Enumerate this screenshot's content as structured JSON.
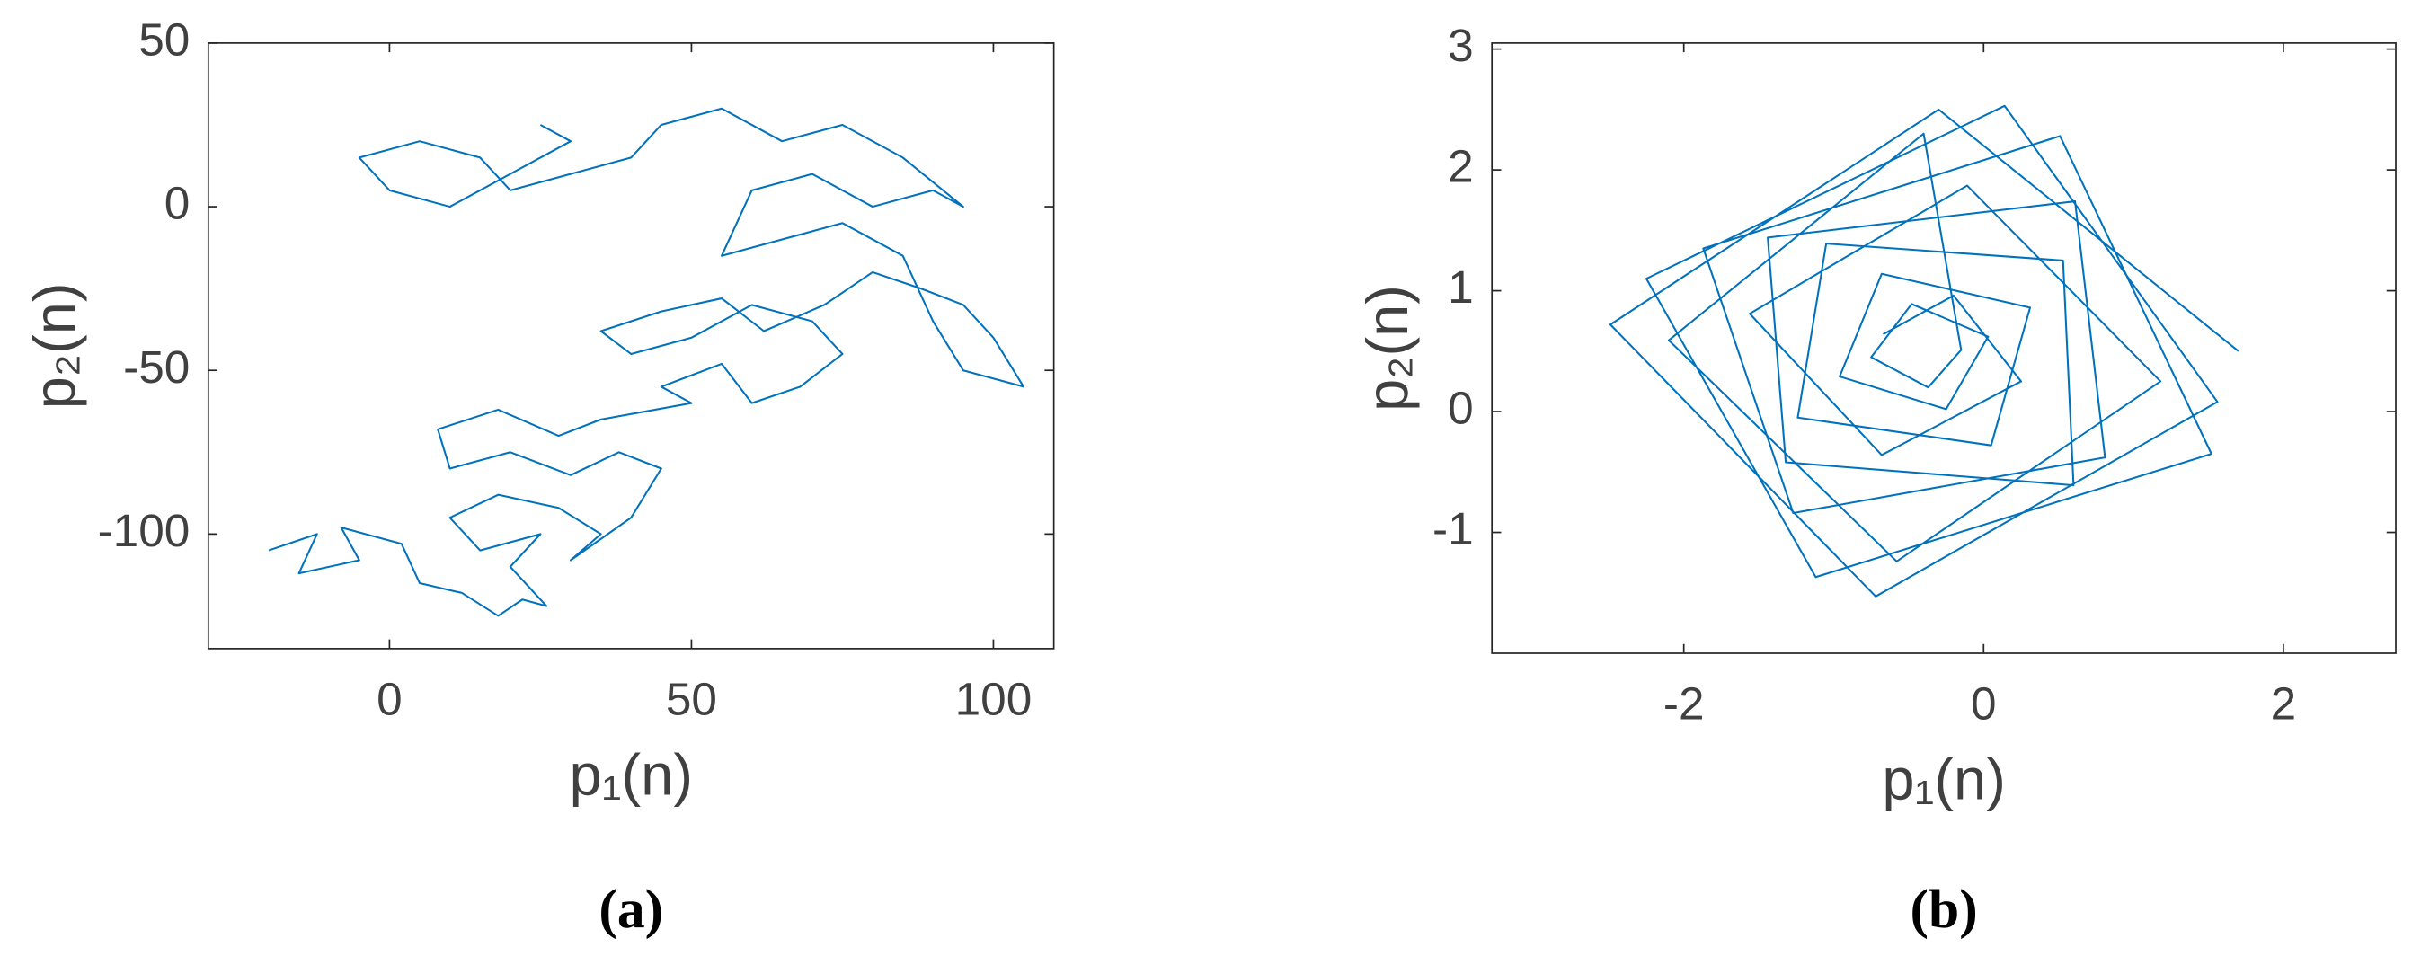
{
  "chart_data": [
    {
      "type": "line",
      "caption": "(a)",
      "xlabel": "p₁(n)",
      "ylabel": "p₂(n)",
      "xlim": [
        -30,
        110
      ],
      "ylim": [
        -135,
        50
      ],
      "xticks": [
        0,
        50,
        100
      ],
      "yticks": [
        -100,
        -50,
        0,
        50
      ],
      "x": [
        -20,
        -12,
        -15,
        -5,
        -8,
        2,
        5,
        12,
        18,
        22,
        26,
        20,
        25,
        15,
        10,
        18,
        28,
        35,
        30,
        40,
        45,
        38,
        30,
        20,
        10,
        8,
        18,
        28,
        35,
        50,
        45,
        55,
        60,
        68,
        75,
        70,
        60,
        50,
        40,
        35,
        45,
        55,
        62,
        72,
        80,
        88,
        95,
        100,
        105,
        95,
        90,
        85,
        75,
        65,
        55,
        60,
        70,
        80,
        90,
        95,
        85,
        75,
        65,
        55,
        45,
        40,
        30,
        20,
        15,
        5,
        -5,
        0,
        10,
        20,
        30,
        25
      ],
      "series": [
        {
          "color": "#0072bd",
          "values": [
            -105,
            -100,
            -112,
            -108,
            -98,
            -103,
            -115,
            -118,
            -125,
            -120,
            -122,
            -110,
            -100,
            -105,
            -95,
            -88,
            -92,
            -100,
            -108,
            -95,
            -80,
            -75,
            -82,
            -75,
            -80,
            -68,
            -62,
            -70,
            -65,
            -60,
            -55,
            -48,
            -60,
            -55,
            -45,
            -35,
            -30,
            -40,
            -45,
            -38,
            -32,
            -28,
            -38,
            -30,
            -20,
            -25,
            -30,
            -40,
            -55,
            -50,
            -35,
            -15,
            -5,
            -10,
            -15,
            5,
            10,
            0,
            5,
            0,
            15,
            25,
            20,
            30,
            25,
            15,
            10,
            5,
            15,
            20,
            15,
            5,
            0,
            10,
            20,
            25
          ]
        }
      ]
    },
    {
      "type": "line",
      "caption": "(b)",
      "xlabel": "p₁(n)",
      "ylabel": "p₂(n)",
      "xlim": [
        -3.28,
        2.75
      ],
      "ylim": [
        -2,
        3.05
      ],
      "xticks": [
        -2,
        0,
        2
      ],
      "yticks": [
        -1,
        0,
        1,
        2,
        3
      ],
      "x": [
        1.7,
        -0.3,
        -2.49,
        -0.72,
        1.56,
        0.14,
        -2.25,
        -1.12,
        1.52,
        0.51,
        -1.87,
        -1.27,
        0.81,
        0.61,
        -1.44,
        -1.32,
        0.6,
        0.53,
        -1.05,
        -1.24,
        0.05,
        0.31,
        -0.68,
        -0.96,
        -0.25,
        0.03,
        -0.48,
        -0.75,
        -0.37,
        -0.15,
        -0.4,
        -2.1,
        -0.58,
        1.18,
        -0.11,
        -1.56,
        -0.68,
        0.25,
        -0.2,
        -0.67
      ],
      "series": [
        {
          "color": "#0072bd",
          "values": [
            0.5,
            2.5,
            0.72,
            -1.53,
            0.08,
            2.53,
            1.1,
            -1.37,
            -0.35,
            2.28,
            1.35,
            -0.84,
            -0.38,
            1.74,
            1.44,
            -0.42,
            -0.61,
            1.25,
            1.39,
            -0.05,
            -0.28,
            0.86,
            1.14,
            0.29,
            0.02,
            0.62,
            0.89,
            0.45,
            0.2,
            0.51,
            2.3,
            0.59,
            -1.24,
            0.25,
            1.87,
            0.81,
            -0.36,
            0.25,
            0.96,
            0.64
          ]
        }
      ]
    }
  ]
}
